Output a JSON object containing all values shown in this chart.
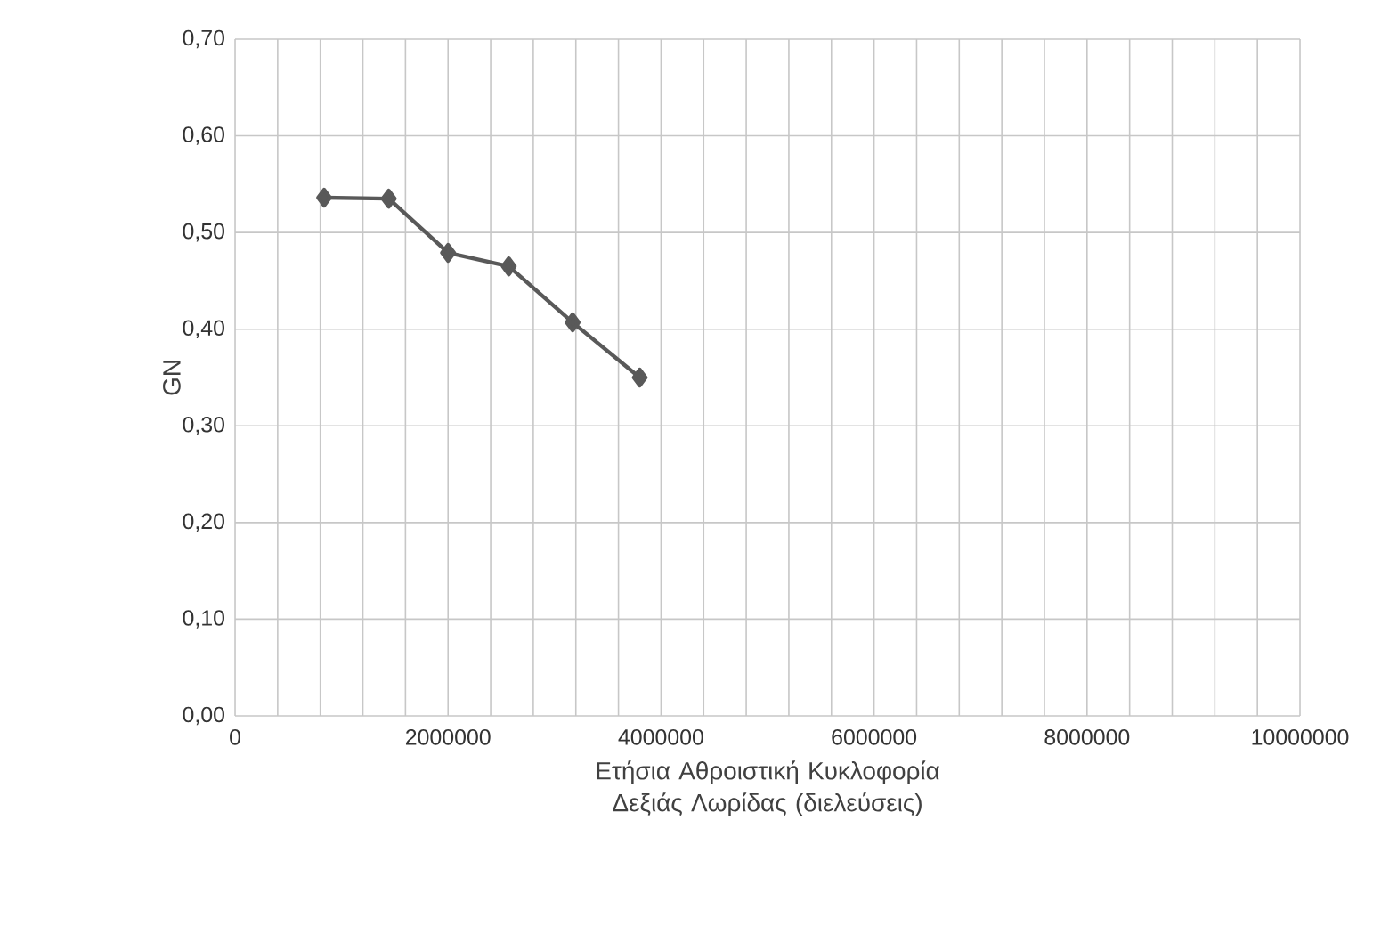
{
  "chart_data": {
    "type": "line",
    "xlabel": "Ετήσια Αθροιστική Κυκλοφορία Δεξιάς Λωρίδας (διελεύσεις)",
    "ylabel": "GN",
    "x": [
      836000,
      1443000,
      2000000,
      2570000,
      3170000,
      3800000
    ],
    "series": [
      {
        "color": "#595959",
        "values": [
          0.536,
          0.535,
          0.479,
          0.465,
          0.407,
          0.35
        ]
      }
    ],
    "marker": "diamond",
    "line_style": "solid",
    "grid": true,
    "xlim": [
      0,
      10000000
    ],
    "xticks": [
      0,
      {
        "value": 400000,
        "label": null
      },
      {
        "value": 800000,
        "label": null
      },
      {
        "value": 1200000,
        "label": null
      },
      {
        "value": 1600000,
        "label": null
      },
      2000000,
      {
        "value": 2400000,
        "label": null
      },
      {
        "value": 2800000,
        "label": null
      },
      {
        "value": 3200000,
        "label": null
      },
      {
        "value": 3600000,
        "label": null
      },
      4000000,
      {
        "value": 4400000,
        "label": null
      },
      {
        "value": 4800000,
        "label": null
      },
      {
        "value": 5200000,
        "label": null
      },
      {
        "value": 5600000,
        "label": null
      },
      6000000,
      {
        "value": 6400000,
        "label": null
      },
      {
        "value": 6800000,
        "label": null
      },
      {
        "value": 7200000,
        "label": null
      },
      {
        "value": 7600000,
        "label": null
      },
      8000000,
      {
        "value": 8400000,
        "label": null
      },
      {
        "value": 8800000,
        "label": null
      },
      {
        "value": 9200000,
        "label": null
      },
      {
        "value": 9600000,
        "label": null
      },
      10000000
    ],
    "ylim": [
      0,
      0.7
    ],
    "yticks": [
      {
        "value": 0,
        "label": "0,00"
      },
      {
        "value": 0.1,
        "label": "0,10"
      },
      {
        "value": 0.2,
        "label": "0,20"
      },
      {
        "value": 0.3,
        "label": "0,30"
      },
      {
        "value": 0.4,
        "label": "0,40"
      },
      {
        "value": 0.5,
        "label": "0,50"
      },
      {
        "value": 0.6,
        "label": "0,60"
      },
      {
        "value": 0.7,
        "label": "0,70"
      }
    ]
  }
}
